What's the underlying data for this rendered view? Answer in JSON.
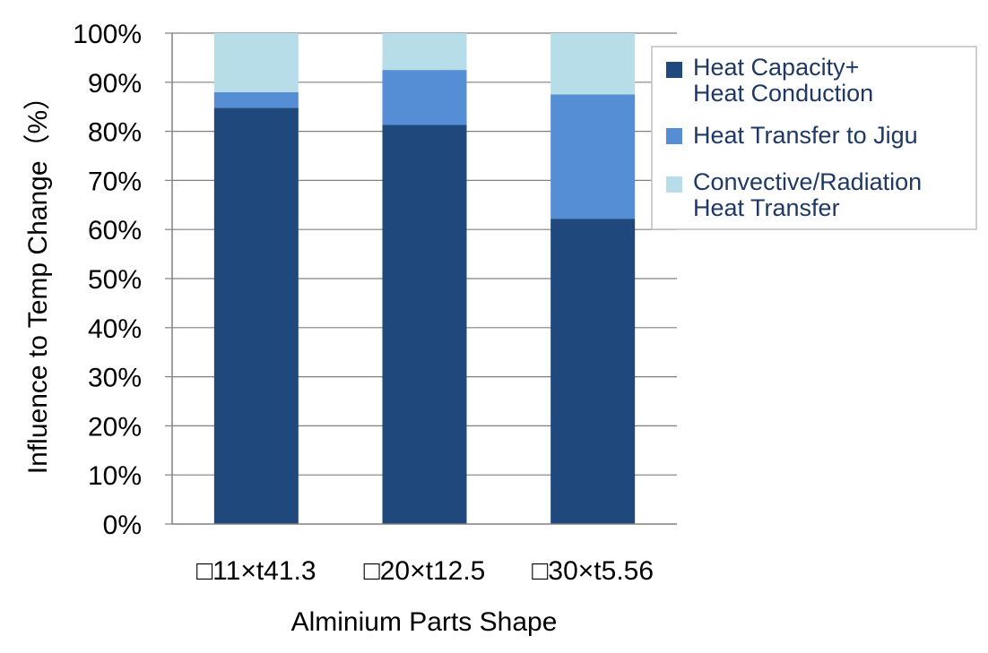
{
  "chart_data": {
    "type": "bar",
    "stacked": true,
    "xlabel": "Alminium Parts Shape",
    "ylabel": "Influence to Temp Change（%）",
    "ylim": [
      0,
      100
    ],
    "y_unit": "%",
    "y_ticks": [
      "0%",
      "10%",
      "20%",
      "30%",
      "40%",
      "50%",
      "60%",
      "70%",
      "80%",
      "90%",
      "100%"
    ],
    "categories": [
      "□11×t41.3",
      "□20×t12.5",
      "□30×t5.56"
    ],
    "series": [
      {
        "name": "Heat Capacity+\nHeat Conduction",
        "name_lines": [
          "Heat Capacity+",
          "Heat Conduction"
        ],
        "color": "#1f497d",
        "values": [
          84.8,
          81.3,
          62.2
        ]
      },
      {
        "name": "Heat Transfer to Jigu",
        "name_lines": [
          "Heat Transfer to Jigu"
        ],
        "color": "#558ed5",
        "values": [
          3.2,
          11.2,
          25.3
        ]
      },
      {
        "name": "Convective/Radiation\nHeat Transfer",
        "name_lines": [
          "Convective/Radiation",
          "Heat Transfer"
        ],
        "color": "#b7dee8",
        "values": [
          12.0,
          7.5,
          12.5
        ]
      }
    ],
    "grid": {
      "horizontal": true,
      "vertical": false
    },
    "legend_position": "right-top"
  }
}
